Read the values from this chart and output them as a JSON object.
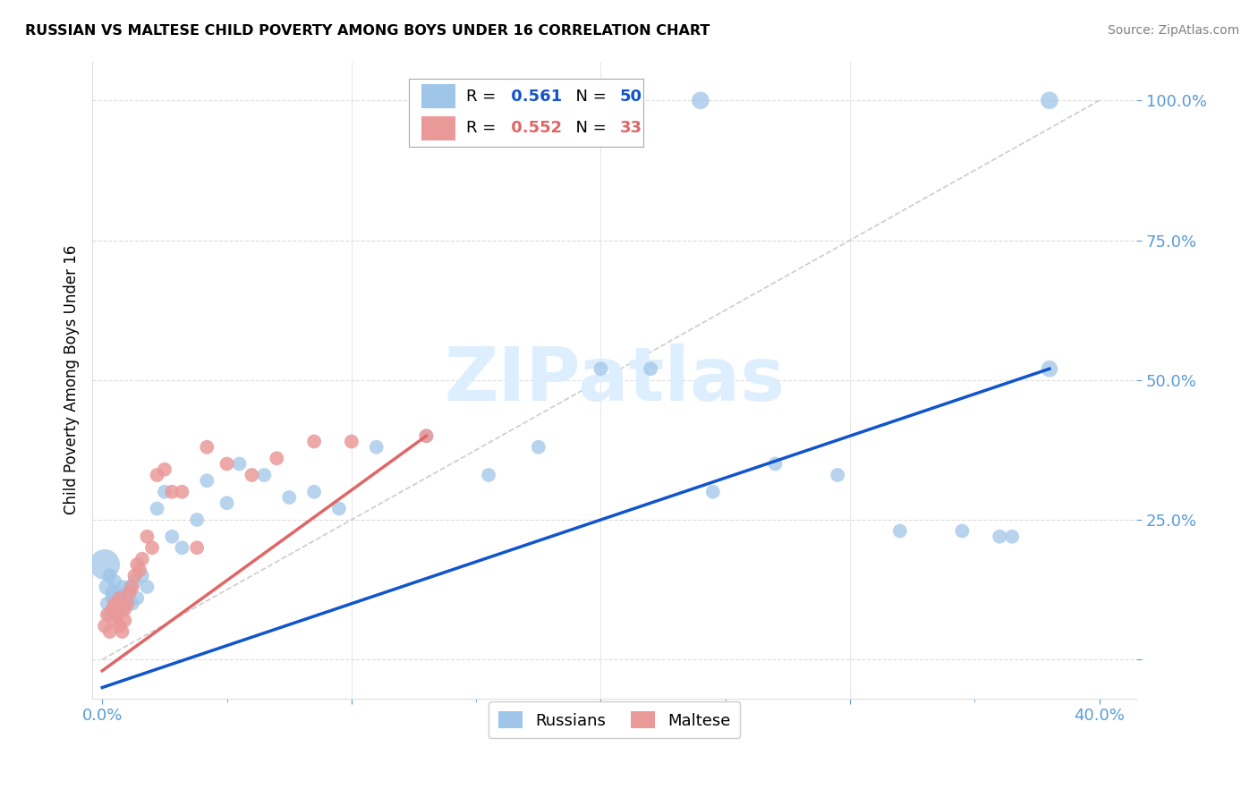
{
  "title": "RUSSIAN VS MALTESE CHILD POVERTY AMONG BOYS UNDER 16 CORRELATION CHART",
  "source": "Source: ZipAtlas.com",
  "ylabel": "Child Poverty Among Boys Under 16",
  "russian_R": 0.561,
  "russian_N": 50,
  "maltese_R": 0.552,
  "maltese_N": 33,
  "russian_color": "#9fc5e8",
  "maltese_color": "#ea9999",
  "russian_line_color": "#1155cc",
  "maltese_line_color": "#e06666",
  "watermark": "ZIPatlas",
  "watermark_color": "#ddeeff",
  "legend_russian_label": "Russians",
  "legend_maltese_label": "Maltese",
  "tick_color": "#5b9bd5",
  "grid_color": "#dddddd",
  "ref_line_color": "#cccccc",
  "russians_x": [
    0.001,
    0.002,
    0.002,
    0.003,
    0.003,
    0.004,
    0.004,
    0.005,
    0.005,
    0.006,
    0.006,
    0.007,
    0.008,
    0.008,
    0.009,
    0.01,
    0.011,
    0.012,
    0.013,
    0.014,
    0.016,
    0.018,
    0.022,
    0.025,
    0.028,
    0.032,
    0.038,
    0.042,
    0.05,
    0.055,
    0.065,
    0.075,
    0.085,
    0.095,
    0.11,
    0.13,
    0.155,
    0.175,
    0.2,
    0.22,
    0.245,
    0.27,
    0.295,
    0.32,
    0.345,
    0.365,
    0.36,
    0.24,
    0.38,
    0.38
  ],
  "russians_y": [
    0.17,
    0.13,
    0.1,
    0.15,
    0.08,
    0.12,
    0.11,
    0.09,
    0.14,
    0.1,
    0.12,
    0.11,
    0.13,
    0.09,
    0.1,
    0.12,
    0.13,
    0.1,
    0.14,
    0.11,
    0.15,
    0.13,
    0.27,
    0.3,
    0.22,
    0.2,
    0.25,
    0.32,
    0.28,
    0.35,
    0.33,
    0.29,
    0.3,
    0.27,
    0.38,
    0.4,
    0.33,
    0.38,
    0.52,
    0.52,
    0.3,
    0.35,
    0.33,
    0.23,
    0.23,
    0.22,
    0.22,
    1.0,
    0.52,
    1.0
  ],
  "russians_size": [
    600,
    180,
    130,
    130,
    130,
    130,
    130,
    130,
    130,
    130,
    130,
    130,
    130,
    130,
    130,
    130,
    130,
    130,
    130,
    130,
    130,
    130,
    130,
    130,
    130,
    130,
    130,
    130,
    130,
    130,
    130,
    130,
    130,
    130,
    130,
    130,
    130,
    130,
    130,
    130,
    130,
    130,
    130,
    130,
    130,
    130,
    130,
    200,
    180,
    200
  ],
  "maltese_x": [
    0.001,
    0.002,
    0.003,
    0.004,
    0.005,
    0.005,
    0.006,
    0.007,
    0.007,
    0.008,
    0.009,
    0.009,
    0.01,
    0.011,
    0.012,
    0.013,
    0.014,
    0.015,
    0.016,
    0.018,
    0.02,
    0.022,
    0.025,
    0.028,
    0.032,
    0.038,
    0.042,
    0.05,
    0.06,
    0.07,
    0.085,
    0.1,
    0.13
  ],
  "maltese_y": [
    0.06,
    0.08,
    0.05,
    0.09,
    0.07,
    0.1,
    0.08,
    0.11,
    0.06,
    0.05,
    0.09,
    0.07,
    0.1,
    0.12,
    0.13,
    0.15,
    0.17,
    0.16,
    0.18,
    0.22,
    0.2,
    0.33,
    0.34,
    0.3,
    0.3,
    0.2,
    0.38,
    0.35,
    0.33,
    0.36,
    0.39,
    0.39,
    0.4
  ],
  "maltese_size": [
    130,
    130,
    130,
    130,
    130,
    130,
    130,
    130,
    130,
    130,
    130,
    130,
    130,
    130,
    130,
    130,
    130,
    130,
    130,
    130,
    130,
    130,
    130,
    130,
    130,
    130,
    130,
    130,
    130,
    130,
    130,
    130,
    130
  ],
  "russian_line_x": [
    0.0,
    0.38
  ],
  "russian_line_y": [
    -0.05,
    0.52
  ],
  "maltese_line_x": [
    0.0,
    0.13
  ],
  "maltese_line_y": [
    -0.02,
    0.4
  ],
  "ref_line_x": [
    0.0,
    0.4
  ],
  "ref_line_y": [
    0.0,
    1.0
  ],
  "xlim": [
    -0.004,
    0.415
  ],
  "ylim": [
    -0.07,
    1.07
  ],
  "xticks": [
    0.0,
    0.1,
    0.2,
    0.3,
    0.4
  ],
  "xticklabels": [
    "0.0%",
    "",
    "",
    "",
    "40.0%"
  ],
  "yticks": [
    0.0,
    0.25,
    0.5,
    0.75,
    1.0
  ],
  "yticklabels": [
    "",
    "25.0%",
    "50.0%",
    "75.0%",
    "100.0%"
  ]
}
